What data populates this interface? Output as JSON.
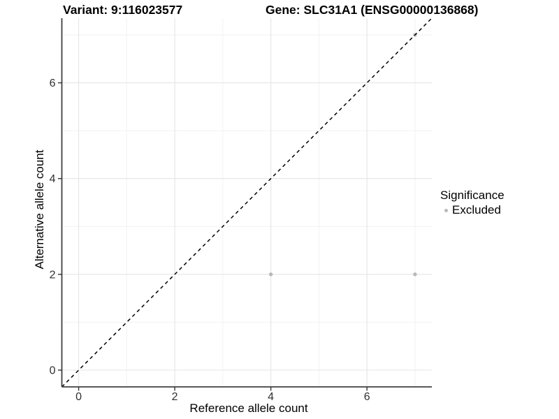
{
  "chart_data": {
    "type": "scatter",
    "title_left": "Variant: 9:116023577",
    "title_right": "Gene: SLC31A1 (ENSG00000136868)",
    "xlabel": "Reference allele count",
    "ylabel": "Alternative allele count",
    "xlim": [
      -0.35,
      7.35
    ],
    "ylim": [
      -0.35,
      7.35
    ],
    "x_ticks": [
      0,
      2,
      4,
      6
    ],
    "y_ticks": [
      0,
      2,
      4,
      6
    ],
    "grid": {
      "major": [
        0,
        2,
        4,
        6
      ],
      "minor": [
        1,
        3,
        5,
        7
      ]
    },
    "identity_line": {
      "style": "dashed",
      "slope": 1,
      "intercept": 0
    },
    "series": [
      {
        "name": "Excluded",
        "color": "#b9b9b9",
        "points": [
          [
            4,
            2
          ],
          [
            7,
            2
          ],
          [
            7,
            7
          ]
        ]
      }
    ],
    "legend": {
      "title": "Significance",
      "position": "right",
      "entries": [
        {
          "label": "Excluded",
          "color": "#b9b9b9"
        }
      ]
    },
    "style": {
      "background": "#ffffff",
      "grid_major_color": "#e5e5e5",
      "grid_minor_color": "#f2f2f2",
      "axis_line_color": "#404040",
      "tick_color": "#333333",
      "tick_label_color": "#303030",
      "identity_line_color": "#000000"
    }
  }
}
